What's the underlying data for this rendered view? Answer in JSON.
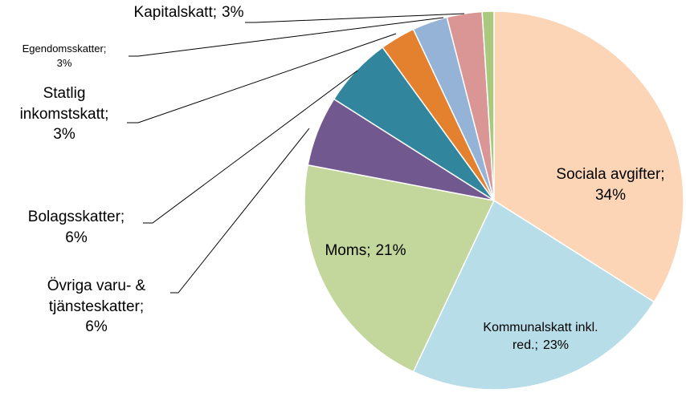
{
  "chart_data": {
    "type": "pie",
    "categories": [
      "Sociala avgifter;",
      "Kommunalskatt inkl. red.;",
      "Moms;",
      "Övriga varu- & tjänsteskatter;",
      "Bolagsskatter;",
      "Statlig inkomstskatt;",
      "Egendomsskatter;",
      "Kapitalskatt;",
      null
    ],
    "values": [
      34,
      23,
      21,
      6,
      6,
      3,
      3,
      3,
      1
    ],
    "value_labels": [
      "34%",
      "23%",
      "21%",
      "6%",
      "6%",
      "3%",
      "3%",
      "3%",
      null
    ],
    "colors": [
      "#fbd5b5",
      "#b7dde8",
      "#c3d69b",
      "#71588f",
      "#31859c",
      "#e4812f",
      "#95b3d7",
      "#d99694",
      "#a9c97f"
    ]
  }
}
